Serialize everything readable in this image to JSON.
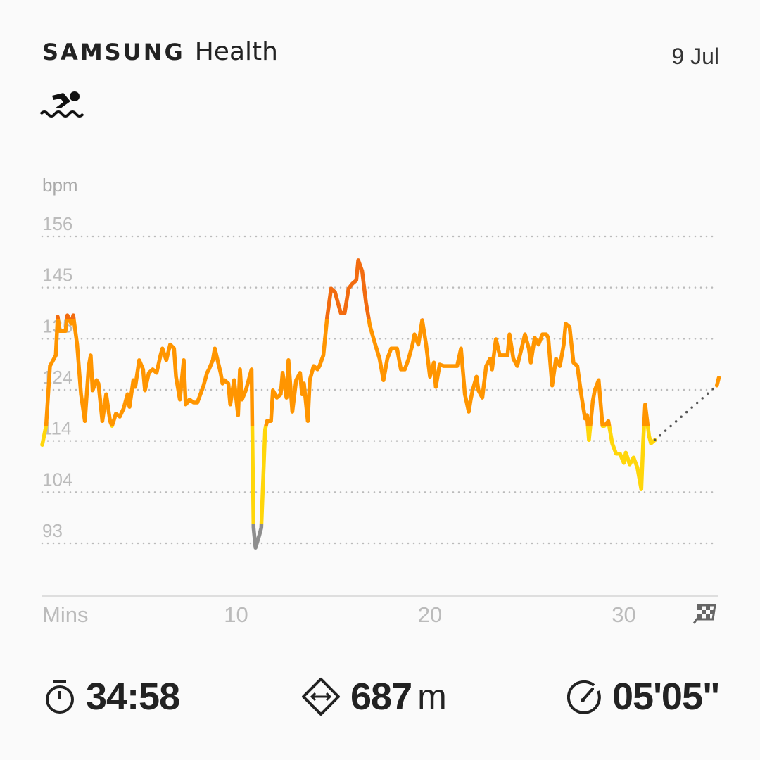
{
  "header": {
    "brand_word": "SAMSUNG",
    "app_word": "Health",
    "date": "9 Jul",
    "activity_icon": "swimming-icon"
  },
  "stats": {
    "duration": {
      "icon": "stopwatch-icon",
      "value": "34:58"
    },
    "distance": {
      "icon": "distance-diamond-icon",
      "value": "687",
      "unit": "m"
    },
    "pace": {
      "icon": "speedometer-icon",
      "value": "05'05\""
    }
  },
  "chart_data": {
    "type": "line",
    "ylabel": "bpm",
    "xlabel": "Mins",
    "y_ticks": [
      "156",
      "145",
      "135",
      "124",
      "114",
      "104",
      "93"
    ],
    "x_ticks": [
      "10",
      "20",
      "30"
    ],
    "ylim": [
      93,
      156
    ],
    "xlim": [
      0,
      34.9
    ],
    "grid": "horizontal dotted",
    "end_marker_icon": "checkered-flag-icon",
    "zones": [
      {
        "name": "gray",
        "max_bpm": 97,
        "color": "#8E8E8E"
      },
      {
        "name": "yellow",
        "max_bpm": 117,
        "color": "#FFD60A"
      },
      {
        "name": "orange",
        "max_bpm": 139,
        "color": "#FF9500"
      },
      {
        "name": "dark-orange",
        "max_bpm": 200,
        "color": "#F26B0F"
      }
    ],
    "gap_color": "#555555",
    "series": [
      {
        "values": [
          [
            0,
            113.2
          ],
          [
            0.2,
            117.1
          ],
          [
            0.4,
            129.4
          ],
          [
            0.7,
            131.6
          ],
          [
            0.8,
            139.5
          ],
          [
            0.9,
            136.6
          ],
          [
            1.2,
            136.6
          ],
          [
            1.3,
            139.8
          ],
          [
            1.5,
            138.1
          ],
          [
            1.6,
            139.8
          ],
          [
            1.8,
            133.8
          ],
          [
            2.0,
            123.6
          ],
          [
            2.2,
            118.1
          ],
          [
            2.4,
            129.4
          ],
          [
            2.5,
            131.6
          ],
          [
            2.6,
            124.4
          ],
          [
            2.8,
            126.5
          ],
          [
            2.9,
            125.8
          ],
          [
            3.1,
            118.1
          ],
          [
            3.3,
            123.6
          ],
          [
            3.5,
            118.1
          ],
          [
            3.6,
            117.1
          ],
          [
            3.8,
            119.6
          ],
          [
            4.0,
            119.0
          ],
          [
            4.2,
            120.7
          ],
          [
            4.4,
            123.6
          ],
          [
            4.5,
            121.0
          ],
          [
            4.7,
            126.5
          ],
          [
            4.8,
            125.1
          ],
          [
            5.0,
            130.6
          ],
          [
            5.2,
            128.7
          ],
          [
            5.3,
            124.4
          ],
          [
            5.5,
            128.0
          ],
          [
            5.7,
            128.7
          ],
          [
            5.9,
            128.0
          ],
          [
            6.1,
            131.6
          ],
          [
            6.2,
            133.0
          ],
          [
            6.4,
            130.6
          ],
          [
            6.6,
            133.8
          ],
          [
            6.8,
            133.0
          ],
          [
            6.9,
            127.2
          ],
          [
            7.1,
            122.5
          ],
          [
            7.3,
            130.6
          ],
          [
            7.4,
            121.5
          ],
          [
            7.6,
            122.5
          ],
          [
            7.8,
            121.9
          ],
          [
            8.0,
            121.9
          ],
          [
            8.3,
            125.1
          ],
          [
            8.5,
            128.0
          ],
          [
            8.6,
            128.7
          ],
          [
            8.8,
            130.6
          ],
          [
            8.9,
            133.0
          ],
          [
            9.2,
            128.0
          ],
          [
            9.3,
            125.8
          ],
          [
            9.4,
            126.5
          ],
          [
            9.6,
            125.8
          ],
          [
            9.7,
            121.5
          ],
          [
            9.9,
            126.5
          ],
          [
            10.1,
            119.3
          ],
          [
            10.2,
            128.7
          ],
          [
            10.3,
            122.5
          ],
          [
            10.5,
            124.4
          ],
          [
            10.6,
            125.8
          ],
          [
            10.8,
            128.7
          ],
          [
            10.9,
            96.2
          ],
          [
            11.0,
            92.1
          ],
          [
            11.2,
            94.7
          ],
          [
            11.3,
            96.2
          ],
          [
            11.5,
            116.4
          ],
          [
            11.6,
            118.1
          ],
          [
            11.8,
            118.1
          ],
          [
            11.9,
            124.4
          ],
          [
            12.1,
            122.9
          ],
          [
            12.3,
            123.6
          ],
          [
            12.4,
            128.0
          ],
          [
            12.6,
            122.9
          ],
          [
            12.7,
            130.6
          ],
          [
            12.9,
            120.0
          ],
          [
            13.1,
            126.5
          ],
          [
            13.3,
            128.0
          ],
          [
            13.4,
            123.6
          ],
          [
            13.5,
            125.8
          ],
          [
            13.7,
            118.1
          ],
          [
            13.8,
            126.5
          ],
          [
            14.0,
            129.4
          ],
          [
            14.2,
            128.7
          ],
          [
            14.3,
            129.4
          ],
          [
            14.5,
            131.6
          ],
          [
            14.7,
            139.5
          ],
          [
            14.9,
            145.3
          ],
          [
            15.1,
            144.6
          ],
          [
            15.3,
            141.7
          ],
          [
            15.4,
            140.3
          ],
          [
            15.6,
            140.3
          ],
          [
            15.8,
            145.3
          ],
          [
            16.0,
            146.3
          ],
          [
            16.2,
            147.0
          ],
          [
            16.3,
            151.1
          ],
          [
            16.5,
            148.9
          ],
          [
            16.7,
            142.4
          ],
          [
            16.9,
            137.7
          ],
          [
            17.1,
            134.9
          ],
          [
            17.2,
            133.5
          ],
          [
            17.4,
            130.9
          ],
          [
            17.6,
            126.5
          ],
          [
            17.8,
            130.9
          ],
          [
            18.0,
            133.0
          ],
          [
            18.2,
            133.0
          ],
          [
            18.3,
            133.0
          ],
          [
            18.5,
            128.7
          ],
          [
            18.7,
            128.7
          ],
          [
            18.9,
            130.9
          ],
          [
            19.1,
            133.8
          ],
          [
            19.2,
            135.9
          ],
          [
            19.4,
            133.8
          ],
          [
            19.6,
            138.8
          ],
          [
            19.8,
            133.8
          ],
          [
            20.0,
            127.2
          ],
          [
            20.2,
            130.1
          ],
          [
            20.3,
            125.1
          ],
          [
            20.5,
            129.7
          ],
          [
            20.7,
            129.4
          ],
          [
            21.1,
            129.4
          ],
          [
            21.4,
            129.4
          ],
          [
            21.6,
            133.0
          ],
          [
            21.8,
            123.6
          ],
          [
            22.0,
            120.0
          ],
          [
            22.1,
            122.5
          ],
          [
            22.2,
            124.4
          ],
          [
            22.4,
            127.2
          ],
          [
            22.5,
            124.4
          ],
          [
            22.7,
            122.9
          ],
          [
            22.9,
            129.4
          ],
          [
            23.1,
            130.9
          ],
          [
            23.2,
            128.7
          ],
          [
            23.4,
            134.9
          ],
          [
            23.6,
            131.6
          ],
          [
            23.8,
            131.6
          ],
          [
            24.0,
            131.6
          ],
          [
            24.1,
            135.9
          ],
          [
            24.3,
            130.9
          ],
          [
            24.5,
            129.4
          ],
          [
            24.7,
            132.6
          ],
          [
            24.9,
            135.9
          ],
          [
            25.1,
            133.0
          ],
          [
            25.2,
            130.1
          ],
          [
            25.4,
            135.2
          ],
          [
            25.6,
            133.8
          ],
          [
            25.8,
            135.9
          ],
          [
            26.0,
            135.9
          ],
          [
            26.1,
            135.2
          ],
          [
            26.3,
            125.4
          ],
          [
            26.5,
            130.9
          ],
          [
            26.7,
            129.4
          ],
          [
            26.9,
            133.8
          ],
          [
            27.0,
            138.1
          ],
          [
            27.2,
            137.4
          ],
          [
            27.4,
            130.1
          ],
          [
            27.6,
            129.4
          ],
          [
            27.8,
            123.6
          ],
          [
            28.0,
            118.6
          ],
          [
            28.1,
            119.3
          ],
          [
            28.2,
            114.2
          ],
          [
            28.4,
            122.2
          ],
          [
            28.5,
            124.4
          ],
          [
            28.7,
            126.5
          ],
          [
            28.9,
            117.1
          ],
          [
            29.0,
            117.1
          ],
          [
            29.2,
            118.1
          ],
          [
            29.4,
            113.5
          ],
          [
            29.6,
            111.4
          ],
          [
            29.8,
            111.4
          ],
          [
            30.0,
            109.5
          ],
          [
            30.1,
            111.6
          ],
          [
            30.3,
            109.2
          ],
          [
            30.5,
            110.6
          ],
          [
            30.7,
            108.5
          ],
          [
            30.9,
            104.1
          ],
          [
            31.0,
            114.2
          ],
          [
            31.1,
            121.5
          ],
          [
            31.3,
            115.0
          ],
          [
            31.4,
            113.5
          ],
          [
            31.6,
            114.2
          ]
        ]
      },
      {
        "style": "dotted-gap",
        "values": [
          [
            31.6,
            114.2
          ],
          [
            34.8,
            125.4
          ]
        ]
      },
      {
        "values": [
          [
            34.8,
            125.4
          ],
          [
            34.9,
            127.0
          ]
        ]
      }
    ]
  }
}
